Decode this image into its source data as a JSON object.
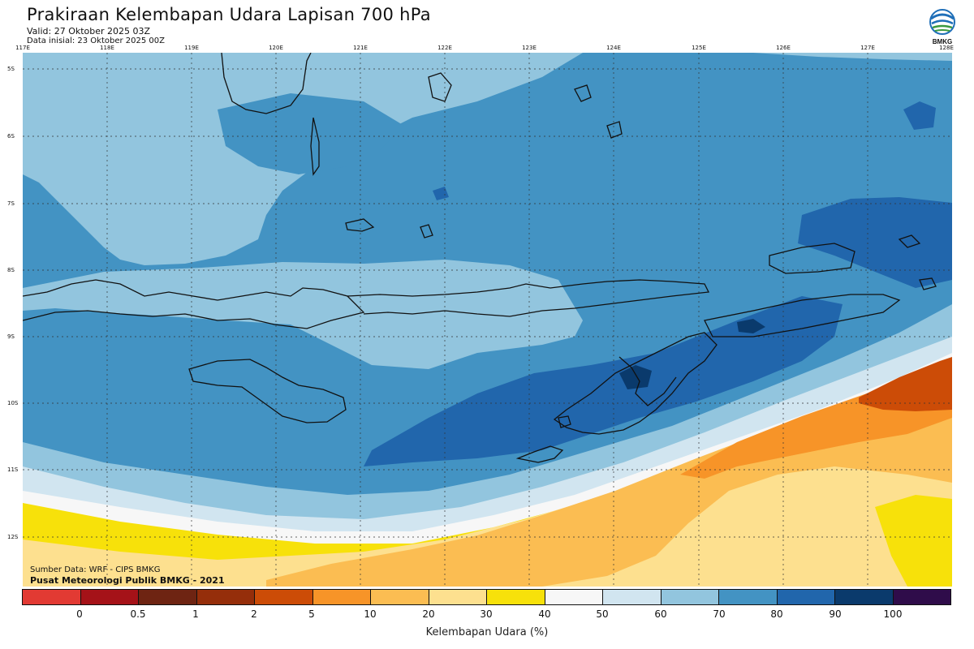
{
  "header": {
    "title": "Prakiraan Kelembapan Udara Lapisan 700 hPa",
    "valid": "Valid: 27 Oktober 2025 03Z",
    "init": "Data inisial: 23 Oktober 2025 00Z"
  },
  "logo": {
    "text": "BMKG",
    "icon": "bmkg-logo-icon"
  },
  "axes": {
    "lon_labels": [
      "117E",
      "118E",
      "119E",
      "120E",
      "121E",
      "122E",
      "123E",
      "124E",
      "125E",
      "126E",
      "127E",
      "128E"
    ],
    "lat_labels": [
      "5S",
      "6S",
      "7S",
      "8S",
      "9S",
      "10S",
      "11S",
      "12S"
    ]
  },
  "source": {
    "line1": "Sumber Data: WRF - CIPS BMKG",
    "line2": "Pusat Meteorologi Publik BMKG - 2021"
  },
  "colorbar": {
    "title": "Kelembapan Udara (%)",
    "colors": [
      "#e23a33",
      "#a51218",
      "#6e2412",
      "#952e0a",
      "#cc4c07",
      "#f79428",
      "#fbbd52",
      "#fde08f",
      "#f7e10a",
      "#f7f7f7",
      "#d1e5f0",
      "#92c5de",
      "#4393c3",
      "#2166ac",
      "#0a3a6c",
      "#2f0c4a"
    ],
    "ticks": [
      "0",
      "0.5",
      "1",
      "2",
      "5",
      "10",
      "20",
      "30",
      "40",
      "50",
      "60",
      "70",
      "80",
      "90",
      "100"
    ]
  },
  "map_colors": {
    "band_70_80": "#92c5de",
    "band_80_90": "#4393c3",
    "band_90_100": "#2166ac",
    "band_100": "#0a3a6c",
    "band_60_70": "#d1e5f0",
    "band_50_60": "#f7f7f7",
    "band_40_50": "#f7e10a",
    "band_30_40": "#fde08f",
    "band_20_30": "#fbbd52",
    "band_10_20": "#f79428",
    "band_5_10": "#cc4c07"
  }
}
